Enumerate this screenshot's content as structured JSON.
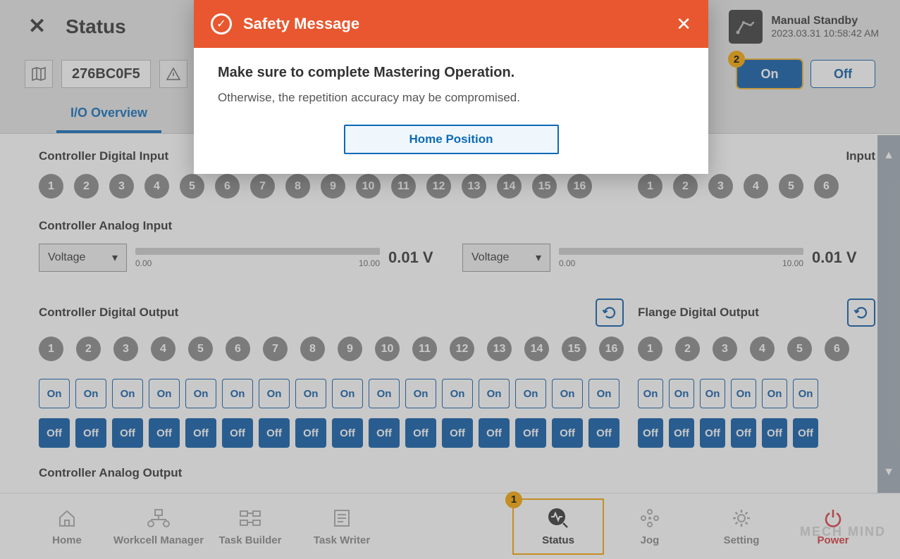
{
  "header": {
    "page_title": "Status",
    "status_mode": "Manual Standby",
    "timestamp": "2023.03.31 10:58:42 AM"
  },
  "secondbar": {
    "code": "276BC0F5",
    "on_label": "On",
    "off_label": "Off"
  },
  "tabs": {
    "active": "I/O Overview"
  },
  "sections": {
    "cdi_title": "Controller Digital Input",
    "fdi_title_partial": "Input",
    "cai_title": "Controller Analog Input",
    "cdo_title": "Controller Digital Output",
    "fdo_title": "Flange Digital Output",
    "cao_title": "Controller Analog Output"
  },
  "cdi_numbers": [
    "1",
    "2",
    "3",
    "4",
    "5",
    "6",
    "7",
    "8",
    "9",
    "10",
    "11",
    "12",
    "13",
    "14",
    "15",
    "16"
  ],
  "fdi_numbers": [
    "1",
    "2",
    "3",
    "4",
    "5",
    "6"
  ],
  "analog": {
    "select_label": "Voltage",
    "min": "0.00",
    "max": "10.00",
    "value1": "0.01 V",
    "value2": "0.01 V"
  },
  "cdo_numbers": [
    "1",
    "2",
    "3",
    "4",
    "5",
    "6",
    "7",
    "8",
    "9",
    "10",
    "11",
    "12",
    "13",
    "14",
    "15",
    "16"
  ],
  "fdo_numbers": [
    "1",
    "2",
    "3",
    "4",
    "5",
    "6"
  ],
  "on_label": "On",
  "off_label": "Off",
  "nav": {
    "home": "Home",
    "workcell": "Workcell Manager",
    "taskbuilder": "Task Builder",
    "taskwriter": "Task Writer",
    "status": "Status",
    "jog": "Jog",
    "setting": "Setting",
    "power": "Power"
  },
  "modal": {
    "title": "Safety Message",
    "msg1": "Make sure to complete Mastering Operation.",
    "msg2": "Otherwise, the repetition accuracy may be compromised.",
    "button": "Home Position"
  },
  "watermark": "MECH  MIND"
}
